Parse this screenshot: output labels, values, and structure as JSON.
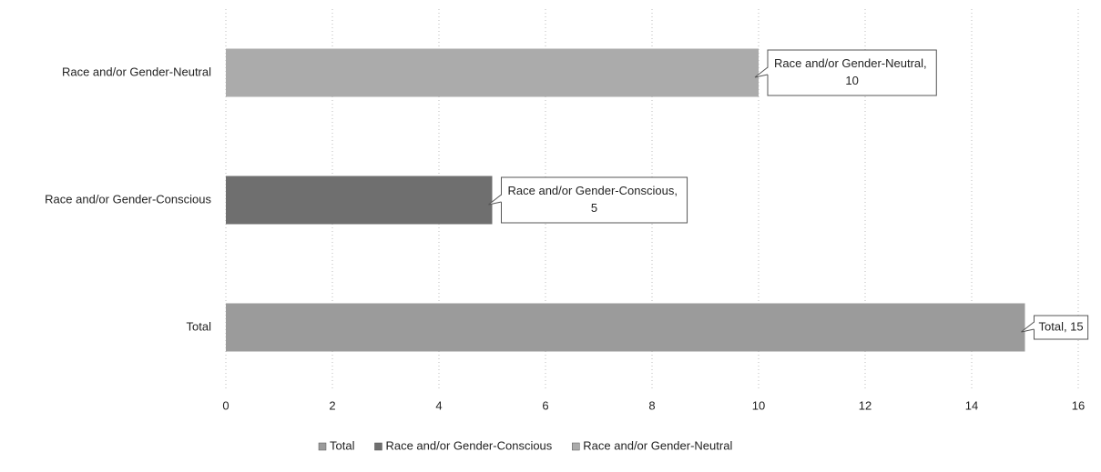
{
  "chart_data": {
    "type": "bar",
    "orientation": "horizontal",
    "categories": [
      "Total",
      "Race and/or Gender-Conscious",
      "Race and/or Gender-Neutral"
    ],
    "values": [
      15,
      5,
      10
    ],
    "value_labels": [
      "Total, 15",
      "Race and/or Gender-Conscious, 5",
      "Race and/or Gender-Neutral, 10"
    ],
    "colors": [
      "#9b9b9b",
      "#6f6f6f",
      "#ababab"
    ],
    "xlim": [
      0,
      16
    ],
    "xticks": [
      0,
      2,
      4,
      6,
      8,
      10,
      12,
      14,
      16
    ],
    "grid": true,
    "legend": "bottom"
  }
}
